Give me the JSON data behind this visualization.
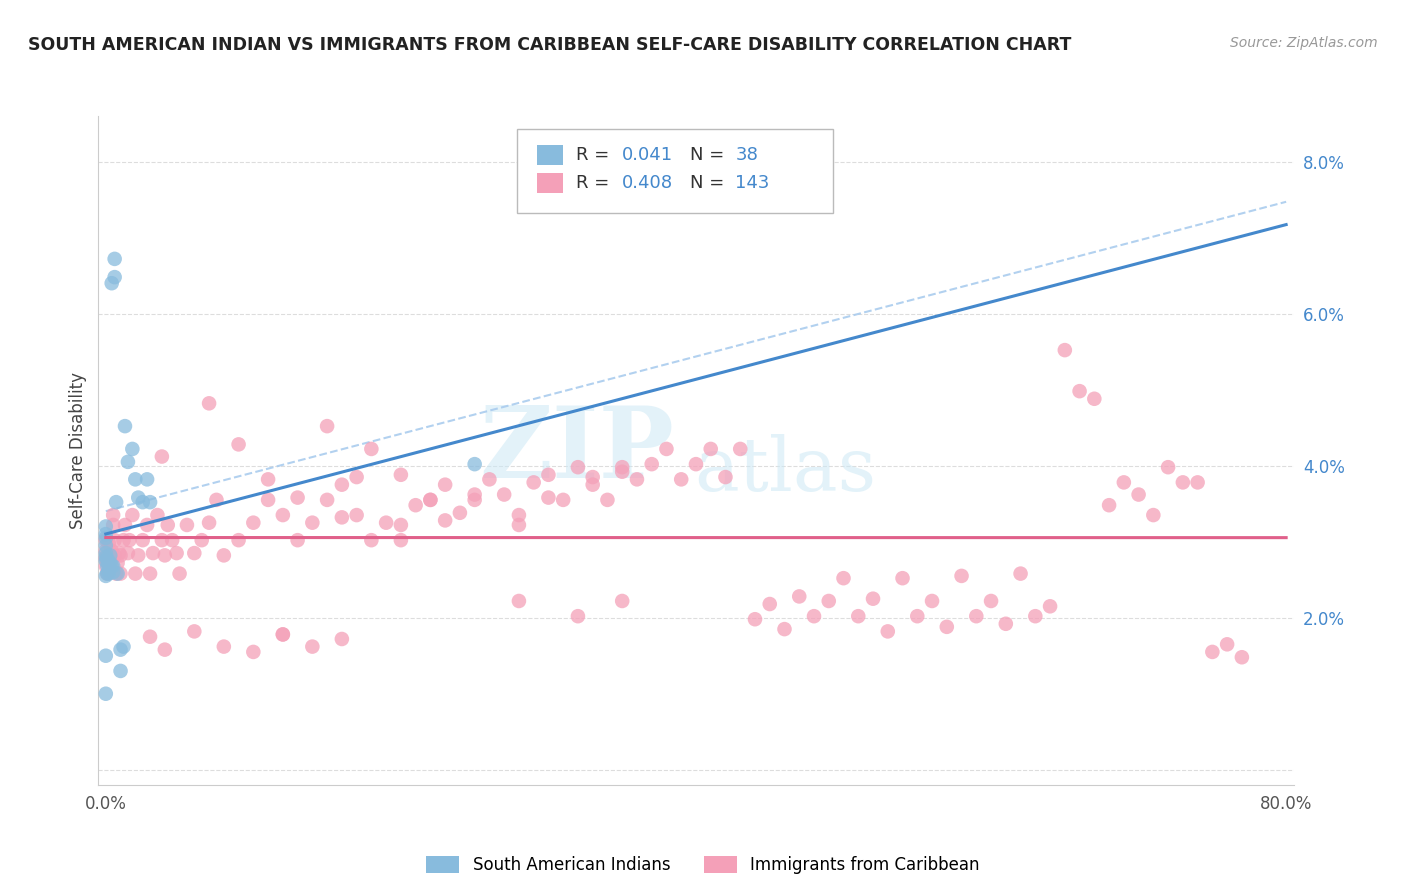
{
  "title": "SOUTH AMERICAN INDIAN VS IMMIGRANTS FROM CARIBBEAN SELF-CARE DISABILITY CORRELATION CHART",
  "source_text": "Source: ZipAtlas.com",
  "ylabel": "Self-Care Disability",
  "legend_R1": "0.041",
  "legend_N1": "38",
  "legend_R2": "0.408",
  "legend_N2": "143",
  "color_blue": "#88bbdd",
  "color_pink": "#f4a0b8",
  "line_blue": "#4488cc",
  "line_pink": "#e0608a",
  "line_dash": "#aaccee",
  "label1": "South American Indians",
  "label2": "Immigrants from Caribbean",
  "blue_x": [
    0.0,
    0.0,
    0.0,
    0.0,
    0.0,
    0.0,
    0.0,
    0.0,
    0.0,
    0.0,
    0.001,
    0.001,
    0.001,
    0.002,
    0.002,
    0.002,
    0.003,
    0.003,
    0.004,
    0.004,
    0.005,
    0.005,
    0.006,
    0.006,
    0.007,
    0.008,
    0.01,
    0.01,
    0.012,
    0.013,
    0.015,
    0.018,
    0.02,
    0.022,
    0.025,
    0.028,
    0.03,
    0.25
  ],
  "blue_y": [
    0.0275,
    0.028,
    0.0285,
    0.0295,
    0.0305,
    0.031,
    0.032,
    0.0255,
    0.015,
    0.01,
    0.0258,
    0.0268,
    0.0278,
    0.027,
    0.0262,
    0.0258,
    0.0272,
    0.0282,
    0.0268,
    0.064,
    0.026,
    0.0268,
    0.0648,
    0.0672,
    0.0352,
    0.0258,
    0.013,
    0.0158,
    0.0162,
    0.0452,
    0.0405,
    0.0422,
    0.0382,
    0.0358,
    0.0352,
    0.0382,
    0.0352,
    0.0402
  ],
  "pink_x": [
    0.0,
    0.0,
    0.0,
    0.0,
    0.001,
    0.001,
    0.002,
    0.002,
    0.003,
    0.003,
    0.004,
    0.005,
    0.005,
    0.006,
    0.006,
    0.007,
    0.008,
    0.009,
    0.01,
    0.01,
    0.012,
    0.013,
    0.015,
    0.016,
    0.018,
    0.02,
    0.022,
    0.025,
    0.028,
    0.03,
    0.032,
    0.035,
    0.038,
    0.04,
    0.042,
    0.045,
    0.048,
    0.05,
    0.055,
    0.06,
    0.065,
    0.07,
    0.075,
    0.08,
    0.09,
    0.1,
    0.11,
    0.12,
    0.13,
    0.14,
    0.15,
    0.16,
    0.17,
    0.18,
    0.19,
    0.2,
    0.21,
    0.22,
    0.23,
    0.24,
    0.25,
    0.26,
    0.27,
    0.28,
    0.29,
    0.3,
    0.31,
    0.32,
    0.33,
    0.34,
    0.35,
    0.36,
    0.37,
    0.38,
    0.39,
    0.4,
    0.41,
    0.42,
    0.43,
    0.44,
    0.45,
    0.46,
    0.47,
    0.48,
    0.49,
    0.5,
    0.51,
    0.52,
    0.53,
    0.54,
    0.55,
    0.56,
    0.57,
    0.58,
    0.59,
    0.6,
    0.61,
    0.62,
    0.63,
    0.64,
    0.65,
    0.66,
    0.67,
    0.68,
    0.69,
    0.7,
    0.71,
    0.72,
    0.73,
    0.74,
    0.75,
    0.76,
    0.77,
    0.12,
    0.15,
    0.18,
    0.2,
    0.22,
    0.25,
    0.28,
    0.3,
    0.33,
    0.35,
    0.038,
    0.17,
    0.2,
    0.23,
    0.28,
    0.32,
    0.35,
    0.07,
    0.09,
    0.11,
    0.13,
    0.16,
    0.03,
    0.04,
    0.06,
    0.08,
    0.1,
    0.12,
    0.14,
    0.16
  ],
  "pink_y": [
    0.0268,
    0.0278,
    0.0288,
    0.0302,
    0.0258,
    0.0272,
    0.0282,
    0.0298,
    0.0262,
    0.0278,
    0.0288,
    0.0322,
    0.0335,
    0.0302,
    0.0282,
    0.0258,
    0.0272,
    0.0285,
    0.0258,
    0.0282,
    0.0302,
    0.0322,
    0.0285,
    0.0302,
    0.0335,
    0.0258,
    0.0282,
    0.0302,
    0.0322,
    0.0258,
    0.0285,
    0.0335,
    0.0302,
    0.0282,
    0.0322,
    0.0302,
    0.0285,
    0.0258,
    0.0322,
    0.0285,
    0.0302,
    0.0325,
    0.0355,
    0.0282,
    0.0302,
    0.0325,
    0.0355,
    0.0335,
    0.0302,
    0.0325,
    0.0355,
    0.0375,
    0.0335,
    0.0302,
    0.0325,
    0.0322,
    0.0348,
    0.0355,
    0.0375,
    0.0338,
    0.0355,
    0.0382,
    0.0362,
    0.0335,
    0.0378,
    0.0388,
    0.0355,
    0.0398,
    0.0385,
    0.0355,
    0.0398,
    0.0382,
    0.0402,
    0.0422,
    0.0382,
    0.0402,
    0.0422,
    0.0385,
    0.0422,
    0.0198,
    0.0218,
    0.0185,
    0.0228,
    0.0202,
    0.0222,
    0.0252,
    0.0202,
    0.0225,
    0.0182,
    0.0252,
    0.0202,
    0.0222,
    0.0188,
    0.0255,
    0.0202,
    0.0222,
    0.0192,
    0.0258,
    0.0202,
    0.0215,
    0.0552,
    0.0498,
    0.0488,
    0.0348,
    0.0378,
    0.0362,
    0.0335,
    0.0398,
    0.0378,
    0.0378,
    0.0155,
    0.0165,
    0.0148,
    0.0178,
    0.0452,
    0.0422,
    0.0388,
    0.0355,
    0.0362,
    0.0322,
    0.0358,
    0.0375,
    0.0392,
    0.0412,
    0.0385,
    0.0302,
    0.0328,
    0.0222,
    0.0202,
    0.0222,
    0.0482,
    0.0428,
    0.0382,
    0.0358,
    0.0332,
    0.0175,
    0.0158,
    0.0182,
    0.0162,
    0.0155,
    0.0178,
    0.0162,
    0.0172
  ]
}
